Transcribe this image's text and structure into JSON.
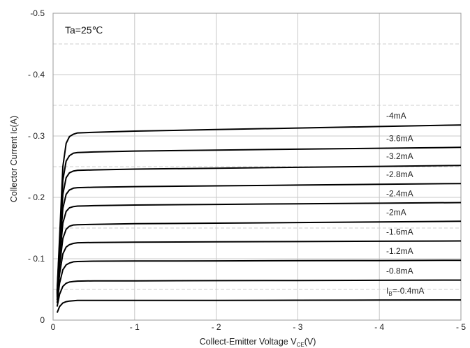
{
  "chart_data": {
    "type": "line",
    "annotation": "Ta=25℃",
    "xlabel_main": "Collect-Emitter Voltage  V",
    "xlabel_sub": "CE",
    "xlabel_tail": "(V)",
    "ylabel": "Collector Current  Ic(A)",
    "xlim": [
      0,
      -5
    ],
    "ylim": [
      0,
      -0.5
    ],
    "x_ticks": [
      {
        "value": 0,
        "label": "0"
      },
      {
        "value": -1,
        "label": "- 1"
      },
      {
        "value": -2,
        "label": "- 2"
      },
      {
        "value": -3,
        "label": "- 3"
      },
      {
        "value": -4,
        "label": "- 4"
      },
      {
        "value": -5,
        "label": "- 5"
      }
    ],
    "y_ticks": [
      {
        "value": 0,
        "label": "0"
      },
      {
        "value": -0.1,
        "label": "- 0.1"
      },
      {
        "value": -0.2,
        "label": "- 0.2"
      },
      {
        "value": -0.3,
        "label": "- 0.3"
      },
      {
        "value": -0.4,
        "label": "- 0.4"
      },
      {
        "value": -0.5,
        "label": "-0.5"
      }
    ],
    "major_grid": true,
    "minor_grid_y_dashed": [
      -0.05,
      -0.15,
      -0.25,
      -0.35,
      -0.45
    ],
    "line_color": "#000000",
    "grid_color": "#c8c8c8",
    "x": [
      -0.05,
      -0.08,
      -0.12,
      -0.16,
      -0.2,
      -0.25,
      -0.3,
      -0.5,
      -1,
      -2,
      -3,
      -4,
      -5
    ],
    "series": [
      {
        "name": "Iʙ=-0.4mA",
        "label_prefix": "I",
        "label_sub": "B",
        "label_suffix": "=-0.4mA",
        "values": [
          -0.012,
          -0.022,
          -0.028,
          -0.03,
          -0.031,
          -0.0315,
          -0.032,
          -0.032,
          -0.032,
          -0.0322,
          -0.0324,
          -0.0326,
          -0.0328
        ]
      },
      {
        "name": "-0.8mA",
        "label": "-0.8mA",
        "values": [
          -0.022,
          -0.042,
          -0.055,
          -0.06,
          -0.062,
          -0.063,
          -0.0635,
          -0.064,
          -0.064,
          -0.0643,
          -0.0646,
          -0.0649,
          -0.0652
        ]
      },
      {
        "name": "-1.2mA",
        "label": "-1.2mA",
        "values": [
          -0.028,
          -0.06,
          -0.082,
          -0.09,
          -0.093,
          -0.095,
          -0.0955,
          -0.096,
          -0.0962,
          -0.0965,
          -0.0968,
          -0.0971,
          -0.0975
        ]
      },
      {
        "name": "-1.6mA",
        "label": "-1.6mA",
        "values": [
          -0.033,
          -0.075,
          -0.108,
          -0.119,
          -0.123,
          -0.125,
          -0.126,
          -0.1265,
          -0.127,
          -0.1275,
          -0.128,
          -0.1285,
          -0.129
        ]
      },
      {
        "name": "-2mA",
        "label": "-2mA",
        "values": [
          -0.037,
          -0.088,
          -0.133,
          -0.148,
          -0.153,
          -0.155,
          -0.1555,
          -0.156,
          -0.157,
          -0.158,
          -0.159,
          -0.16,
          -0.161
        ]
      },
      {
        "name": "-2.4mA",
        "label": "-2.4mA",
        "values": [
          -0.04,
          -0.1,
          -0.158,
          -0.177,
          -0.183,
          -0.185,
          -0.1858,
          -0.1865,
          -0.1875,
          -0.1885,
          -0.1895,
          -0.1905,
          -0.1915
        ]
      },
      {
        "name": "-2.8mA",
        "label": "-2.8mA",
        "values": [
          -0.042,
          -0.11,
          -0.182,
          -0.205,
          -0.212,
          -0.215,
          -0.2158,
          -0.2165,
          -0.2175,
          -0.2188,
          -0.22,
          -0.2212,
          -0.2225
        ]
      },
      {
        "name": "-3.2mA",
        "label": "-3.2mA",
        "values": [
          -0.044,
          -0.118,
          -0.205,
          -0.232,
          -0.24,
          -0.243,
          -0.244,
          -0.2448,
          -0.246,
          -0.2475,
          -0.249,
          -0.2505,
          -0.252
        ]
      },
      {
        "name": "-3.6mA",
        "label": "-3.6mA",
        "values": [
          -0.046,
          -0.126,
          -0.228,
          -0.259,
          -0.268,
          -0.272,
          -0.273,
          -0.274,
          -0.2755,
          -0.277,
          -0.2785,
          -0.28,
          -0.2815
        ]
      },
      {
        "name": "-4mA",
        "label": "-4mA",
        "values": [
          -0.048,
          -0.134,
          -0.25,
          -0.288,
          -0.299,
          -0.303,
          -0.305,
          -0.306,
          -0.308,
          -0.3105,
          -0.313,
          -0.3155,
          -0.318
        ]
      }
    ]
  }
}
